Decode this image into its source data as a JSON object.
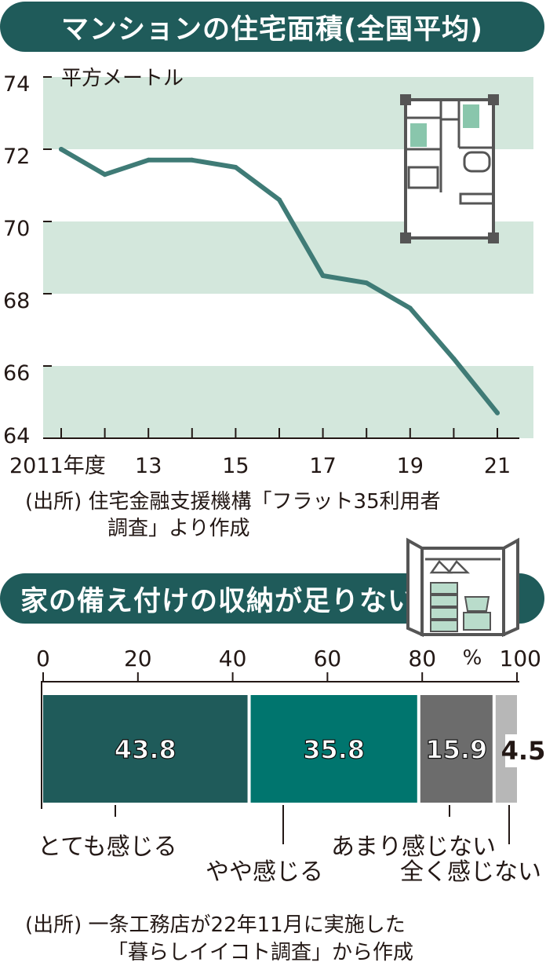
{
  "colors": {
    "banner": "#1f5b5a",
    "band": "#d3e7dc",
    "line": "#3f7b76",
    "bar1": "#1f5b5a",
    "bar2": "#00756e",
    "bar3": "#6c6c6c",
    "bar4": "#b7b7b7"
  },
  "chart1": {
    "title": "マンションの住宅面積(全国平均)",
    "source_line1": "(出所) 住宅金融支援機構「フラット35利用者",
    "source_line2": "調査」より作成"
  },
  "chart2": {
    "title": "家の備え付けの収納が足りない",
    "source_line1": "(出所) 一条工務店が22年11月に実施した",
    "source_line2": "「暮らしイイコト調査」から作成"
  },
  "chart_data": [
    {
      "type": "line",
      "title": "マンションの住宅面積(全国平均)",
      "ylabel": "平方メートル",
      "xlabel": "",
      "x": [
        2011,
        2012,
        2013,
        2014,
        2015,
        2016,
        2017,
        2018,
        2019,
        2020,
        2021
      ],
      "ylim": [
        64,
        74
      ],
      "yticks": [
        "64",
        "66",
        "68",
        "70",
        "72",
        "74"
      ],
      "xtick_labels": [
        "2011年度",
        "13",
        "15",
        "17",
        "19",
        "21"
      ],
      "series": [
        {
          "values": [
            72.0,
            71.3,
            71.7,
            71.7,
            71.5,
            70.6,
            68.5,
            68.3,
            67.6,
            66.2,
            64.7
          ]
        }
      ],
      "bands": "alternating light green horizontal bands"
    },
    {
      "type": "bar",
      "title": "家の備え付けの収納が足りない",
      "orientation": "horizontal stacked",
      "xlim": [
        0,
        100
      ],
      "xticks": [
        "0",
        "20",
        "40",
        "60",
        "80",
        "100"
      ],
      "unit": "%",
      "categories": [
        "とても感じる",
        "やや感じる",
        "あまり感じない",
        "全く感じない"
      ],
      "values": [
        43.8,
        35.8,
        15.9,
        4.5
      ],
      "value_labels": [
        "43.8",
        "35.8",
        "15.9",
        "4.5"
      ]
    }
  ]
}
